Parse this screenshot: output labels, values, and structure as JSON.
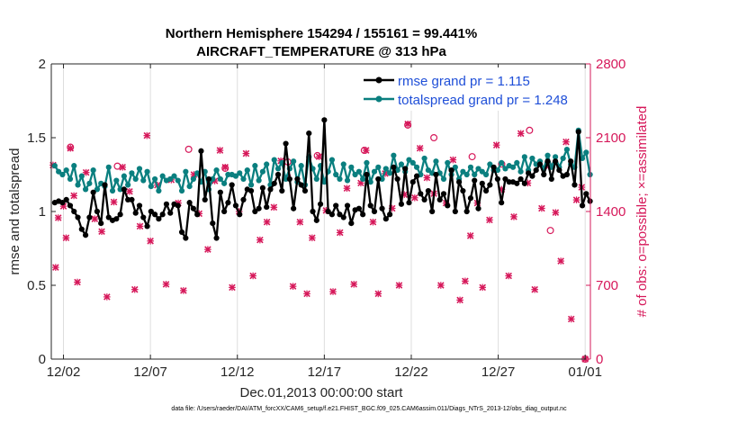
{
  "chart_data": {
    "type": "line",
    "title": [
      "Northern Hemisphere 154294 / 155161 = 99.441%",
      "AIRCRAFT_TEMPERATURE @ 313 hPa"
    ],
    "xlabel": "Dec.01,2013 00:00:00 start",
    "ylabel_left": "rmse and totalspread",
    "ylabel_right": "# of obs: o=possible; ×=assimilated",
    "x_ticks": [
      "12/02",
      "12/07",
      "12/12",
      "12/17",
      "12/22",
      "12/27",
      "01/01"
    ],
    "x_tick_days": [
      1,
      6,
      11,
      16,
      21,
      26,
      31
    ],
    "xlim_days": [
      0.3,
      31.3
    ],
    "ylim_left": [
      0,
      2
    ],
    "y_ticks_left": [
      "0",
      "0.5",
      "1",
      "1.5",
      "2"
    ],
    "ylim_right": [
      0,
      2800
    ],
    "y_ticks_right": [
      "0",
      "700",
      "1400",
      "2100",
      "2800"
    ],
    "colors": {
      "rmse": "#000000",
      "spread": "#0a7f7f",
      "obs": "#d6185a",
      "right_axis": "#d6185a",
      "legend_text": "#1f4fd8"
    },
    "legend": {
      "position": "top-right",
      "rmse": "rmse grand pr = 1.115",
      "spread": "totalspread grand pr = 1.248"
    },
    "footnote": "data file: /Users/raeder/DAI/ATM_forcXX/CAM6_setup/f.e21.FHIST_BGC.f09_025.CAM6assim.011/Diags_NTrS_2013-12/obs_diag_output.nc",
    "series": [
      {
        "name": "rmse",
        "values": [
          1.06,
          1.07,
          1.06,
          1.08,
          1.04,
          1.0,
          0.96,
          0.88,
          0.84,
          0.96,
          1.13,
          1.0,
          0.92,
          1.18,
          0.96,
          0.94,
          0.95,
          0.98,
          1.15,
          1.08,
          1.08,
          0.99,
          1.04,
          0.96,
          0.9,
          1.0,
          0.98,
          0.95,
          0.98,
          1.05,
          0.99,
          1.05,
          1.04,
          0.86,
          0.82,
          1.06,
          1.02,
          0.98,
          1.41,
          1.08,
          1.22,
          0.92,
          0.82,
          1.13,
          1.0,
          1.06,
          1.18,
          1.04,
          0.98,
          1.08,
          1.15,
          1.14,
          1.0,
          1.02,
          1.16,
          1.03,
          1.15,
          1.19,
          1.25,
          1.14,
          1.46,
          1.22,
          1.02,
          1.22,
          1.18,
          1.14,
          1.53,
          1.0,
          0.94,
          1.05,
          1.62,
          1.0,
          0.98,
          1.04,
          0.98,
          0.96,
          1.04,
          0.92,
          1.01,
          1.02,
          0.98,
          1.25,
          1.04,
          1.0,
          1.22,
          1.02,
          0.95,
          0.98,
          1.3,
          1.22,
          1.05,
          1.29,
          1.06,
          1.2,
          1.24,
          1.12,
          1.08,
          1.14,
          1.0,
          1.25,
          1.08,
          1.12,
          1.04,
          1.28,
          1.0,
          1.2,
          1.14,
          1.0,
          1.09,
          1.21,
          1.02,
          1.19,
          1.14,
          1.18,
          1.3,
          1.22,
          1.06,
          1.22,
          1.2,
          1.2,
          1.19,
          1.22,
          1.19,
          1.26,
          1.24,
          1.28,
          1.32,
          1.25,
          1.34,
          1.22,
          1.34,
          1.28,
          1.24,
          1.25,
          1.34,
          1.18,
          1.54,
          1.04,
          1.12,
          1.07
        ],
        "markers": "dot"
      },
      {
        "name": "totalspread",
        "values": [
          1.31,
          1.27,
          1.25,
          1.28,
          1.22,
          1.31,
          1.18,
          1.24,
          1.15,
          1.19,
          1.28,
          1.15,
          1.19,
          1.17,
          1.3,
          1.14,
          1.21,
          1.15,
          1.24,
          1.18,
          1.26,
          1.22,
          1.29,
          1.21,
          1.27,
          1.17,
          1.22,
          1.14,
          1.24,
          1.21,
          1.22,
          1.24,
          1.21,
          1.14,
          1.27,
          1.17,
          1.22,
          1.26,
          1.2,
          1.27,
          1.15,
          1.22,
          1.28,
          1.22,
          1.19,
          1.25,
          1.25,
          1.24,
          1.26,
          1.22,
          1.28,
          1.18,
          1.31,
          1.21,
          1.27,
          1.32,
          1.18,
          1.35,
          1.29,
          1.33,
          1.22,
          1.29,
          1.34,
          1.2,
          1.31,
          1.18,
          1.37,
          1.29,
          1.22,
          1.31,
          1.2,
          1.27,
          1.35,
          1.25,
          1.22,
          1.32,
          1.21,
          1.3,
          1.25,
          1.27,
          1.22,
          1.33,
          1.2,
          1.27,
          1.3,
          1.22,
          1.29,
          1.26,
          1.38,
          1.28,
          1.32,
          1.27,
          1.35,
          1.33,
          1.3,
          1.25,
          1.36,
          1.28,
          1.26,
          1.34,
          1.26,
          1.22,
          1.33,
          1.25,
          1.3,
          1.22,
          1.27,
          1.25,
          1.3,
          1.25,
          1.29,
          1.27,
          1.25,
          1.32,
          1.28,
          1.28,
          1.33,
          1.29,
          1.31,
          1.3,
          1.33,
          1.27,
          1.37,
          1.28,
          1.36,
          1.32,
          1.34,
          1.29,
          1.38,
          1.3,
          1.37,
          1.3,
          1.36,
          1.42,
          1.32,
          1.3,
          1.55,
          1.36,
          1.4,
          1.25
        ],
        "markers": "dot"
      }
    ],
    "obs_possible": [
      {
        "x": 1.4,
        "y": 2010
      },
      {
        "x": 4.1,
        "y": 1830
      },
      {
        "x": 8.2,
        "y": 1990
      },
      {
        "x": 10.3,
        "y": 1810
      },
      {
        "x": 13.9,
        "y": 1870
      },
      {
        "x": 15.6,
        "y": 1930
      },
      {
        "x": 18.3,
        "y": 1980
      },
      {
        "x": 20.8,
        "y": 2220
      },
      {
        "x": 22.3,
        "y": 2100
      },
      {
        "x": 24.5,
        "y": 1920
      },
      {
        "x": 26.2,
        "y": 1850
      },
      {
        "x": 27.8,
        "y": 2170
      },
      {
        "x": 29.0,
        "y": 1220
      },
      {
        "x": 31.0,
        "y": 0
      }
    ],
    "obs_assimilated": [
      {
        "x": 0.4,
        "y": 1840
      },
      {
        "x": 0.55,
        "y": 870
      },
      {
        "x": 0.7,
        "y": 1340
      },
      {
        "x": 1.0,
        "y": 1450
      },
      {
        "x": 1.15,
        "y": 1150
      },
      {
        "x": 1.4,
        "y": 2000
      },
      {
        "x": 1.6,
        "y": 1550
      },
      {
        "x": 1.8,
        "y": 730
      },
      {
        "x": 2.3,
        "y": 1770
      },
      {
        "x": 2.8,
        "y": 1330
      },
      {
        "x": 3.2,
        "y": 1210
      },
      {
        "x": 3.5,
        "y": 590
      },
      {
        "x": 3.9,
        "y": 1490
      },
      {
        "x": 4.4,
        "y": 1820
      },
      {
        "x": 4.8,
        "y": 1590
      },
      {
        "x": 5.1,
        "y": 660
      },
      {
        "x": 5.4,
        "y": 1260
      },
      {
        "x": 5.8,
        "y": 2120
      },
      {
        "x": 6.0,
        "y": 1120
      },
      {
        "x": 6.4,
        "y": 1650
      },
      {
        "x": 6.9,
        "y": 710
      },
      {
        "x": 7.2,
        "y": 1700
      },
      {
        "x": 7.6,
        "y": 1480
      },
      {
        "x": 7.9,
        "y": 650
      },
      {
        "x": 8.5,
        "y": 1750
      },
      {
        "x": 8.8,
        "y": 1380
      },
      {
        "x": 9.3,
        "y": 1040
      },
      {
        "x": 9.7,
        "y": 1690
      },
      {
        "x": 10.0,
        "y": 1980
      },
      {
        "x": 10.3,
        "y": 1820
      },
      {
        "x": 10.7,
        "y": 680
      },
      {
        "x": 11.1,
        "y": 1400
      },
      {
        "x": 11.5,
        "y": 1950
      },
      {
        "x": 11.9,
        "y": 790
      },
      {
        "x": 12.3,
        "y": 1130
      },
      {
        "x": 12.7,
        "y": 1300
      },
      {
        "x": 13.1,
        "y": 1440
      },
      {
        "x": 13.5,
        "y": 1880
      },
      {
        "x": 13.9,
        "y": 1720
      },
      {
        "x": 14.2,
        "y": 690
      },
      {
        "x": 14.6,
        "y": 1300
      },
      {
        "x": 15.0,
        "y": 620
      },
      {
        "x": 15.3,
        "y": 1150
      },
      {
        "x": 15.7,
        "y": 1920
      },
      {
        "x": 16.1,
        "y": 1410
      },
      {
        "x": 16.5,
        "y": 640
      },
      {
        "x": 16.9,
        "y": 1200
      },
      {
        "x": 17.3,
        "y": 1620
      },
      {
        "x": 17.7,
        "y": 710
      },
      {
        "x": 18.1,
        "y": 1670
      },
      {
        "x": 18.4,
        "y": 1980
      },
      {
        "x": 18.8,
        "y": 1300
      },
      {
        "x": 19.1,
        "y": 620
      },
      {
        "x": 19.5,
        "y": 1760
      },
      {
        "x": 19.9,
        "y": 1430
      },
      {
        "x": 20.3,
        "y": 700
      },
      {
        "x": 20.6,
        "y": 1560
      },
      {
        "x": 20.8,
        "y": 2230
      },
      {
        "x": 21.2,
        "y": 1530
      },
      {
        "x": 21.5,
        "y": 2000
      },
      {
        "x": 21.9,
        "y": 1720
      },
      {
        "x": 22.3,
        "y": 1570
      },
      {
        "x": 22.7,
        "y": 700
      },
      {
        "x": 23.0,
        "y": 1480
      },
      {
        "x": 23.4,
        "y": 1890
      },
      {
        "x": 23.8,
        "y": 560
      },
      {
        "x": 24.1,
        "y": 740
      },
      {
        "x": 24.4,
        "y": 1170
      },
      {
        "x": 24.8,
        "y": 1480
      },
      {
        "x": 25.1,
        "y": 680
      },
      {
        "x": 25.5,
        "y": 1320
      },
      {
        "x": 25.9,
        "y": 2030
      },
      {
        "x": 26.2,
        "y": 1610
      },
      {
        "x": 26.6,
        "y": 790
      },
      {
        "x": 26.9,
        "y": 1350
      },
      {
        "x": 27.3,
        "y": 2140
      },
      {
        "x": 27.7,
        "y": 1670
      },
      {
        "x": 28.1,
        "y": 660
      },
      {
        "x": 28.5,
        "y": 1430
      },
      {
        "x": 28.9,
        "y": 1830
      },
      {
        "x": 29.3,
        "y": 1390
      },
      {
        "x": 29.6,
        "y": 930
      },
      {
        "x": 29.9,
        "y": 2060
      },
      {
        "x": 30.2,
        "y": 380
      },
      {
        "x": 30.5,
        "y": 1510
      },
      {
        "x": 30.8,
        "y": 1630
      },
      {
        "x": 31.0,
        "y": 0
      }
    ]
  }
}
